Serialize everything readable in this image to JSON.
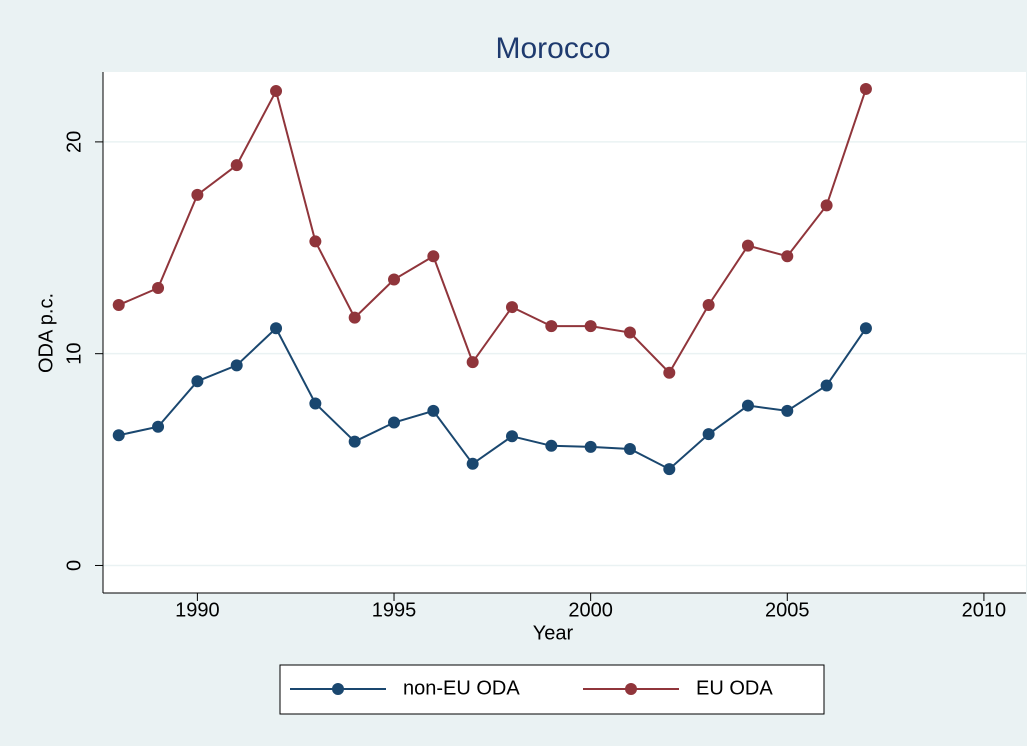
{
  "chart_data": {
    "type": "line",
    "title": "Morocco",
    "xlabel": "Year",
    "ylabel": "ODA p.c.",
    "x": [
      1988,
      1989,
      1990,
      1991,
      1992,
      1993,
      1994,
      1995,
      1996,
      1997,
      1998,
      1999,
      2000,
      2001,
      2002,
      2003,
      2004,
      2005,
      2006,
      2007
    ],
    "series": [
      {
        "name": "non-EU ODA",
        "color": "#1a476f",
        "values": [
          6.15,
          6.55,
          8.7,
          9.45,
          11.2,
          7.65,
          5.85,
          6.75,
          7.3,
          4.8,
          6.1,
          5.65,
          5.6,
          5.5,
          4.55,
          6.2,
          7.55,
          7.3,
          8.5,
          11.2
        ]
      },
      {
        "name": "EU ODA",
        "color": "#90353b",
        "values": [
          12.3,
          13.1,
          17.5,
          18.9,
          22.4,
          15.3,
          11.7,
          13.5,
          14.6,
          9.6,
          12.2,
          11.3,
          11.3,
          11.0,
          9.1,
          12.3,
          15.1,
          14.6,
          17.0,
          22.5
        ]
      }
    ],
    "xlim": [
      1987.6,
      2011.07
    ],
    "xticks": [
      1990,
      1995,
      2000,
      2005,
      2010
    ],
    "ylim": [
      -1.3,
      23.3
    ],
    "yticks": [
      0,
      10,
      20
    ],
    "grid": true,
    "legend": "bottom"
  }
}
